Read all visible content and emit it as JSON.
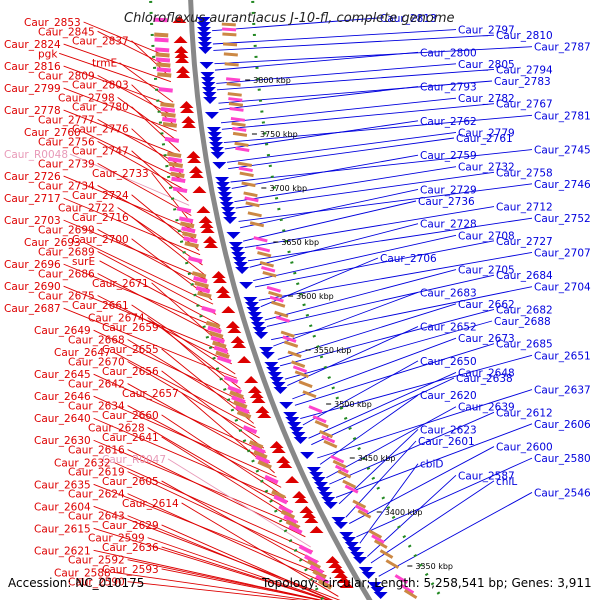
{
  "title": "Chloroflexus aurantiacus J-10-fl, complete genome",
  "accession": "Accession: NC_010175",
  "summary": "Topology: circular; Length: 5,258,541 bp; Genes: 3,911",
  "colors": {
    "forward": "#0000dd",
    "reverse": "#dd0000",
    "rna": "#e89ab8",
    "backbone": "#888888",
    "ticks": "#228822"
  },
  "kbp_labels": [
    "3800 kbp",
    "3750 kbp",
    "3700 kbp",
    "3650 kbp",
    "3600 kbp",
    "3550 kbp",
    "3500 kbp",
    "3450 kbp",
    "3400 kbp",
    "3350 kbp"
  ],
  "left_labels": [
    "Caur_2853",
    "Caur_2845",
    "Caur_2837",
    "Caur_2824",
    "pgk",
    "trmE",
    "Caur_2816",
    "Caur_2809",
    "Caur_2803",
    "Caur_2799",
    "Caur_2798",
    "Caur_2780",
    "Caur_2778",
    "Caur_2777",
    "Caur_2776",
    "Caur_2760",
    "Caur_2756",
    "Caur_2747",
    "Caur_R0048",
    "Caur_2739",
    "Caur_2733",
    "Caur_2726",
    "Caur_2734",
    "Caur_2724",
    "Caur_2717",
    "Caur_2722",
    "Caur_2716",
    "Caur_2703",
    "Caur_2699",
    "Caur_2700",
    "Caur_2693",
    "Caur_2689",
    "surE",
    "Caur_2696",
    "Caur_2686",
    "Caur_2671",
    "Caur_2690",
    "Caur_2675",
    "Caur_2661",
    "Caur_2687",
    "Caur_2674",
    "Caur_2659",
    "Caur_2649",
    "Caur_2668",
    "Caur_2655",
    "Caur_2647",
    "Caur_2670",
    "Caur_2656",
    "Caur_2645",
    "Caur_2642",
    "Caur_2657",
    "Caur_2646",
    "Caur_2634",
    "Caur_2660",
    "Caur_2640",
    "Caur_2628",
    "Caur_2641",
    "Caur_2630",
    "Caur_2616",
    "Caur_R0047",
    "Caur_2632",
    "Caur_2619",
    "Caur_2605",
    "Caur_2635",
    "Caur_2624",
    "Caur_2614",
    "Caur_2604",
    "Caur_2643",
    "Caur_2629",
    "Caur_2615",
    "Caur_2599",
    "Caur_2636",
    "Caur_2621",
    "Caur_2592",
    "Caur_2593",
    "Caur_2588",
    "Caur_2590"
  ],
  "right_labels": [
    "Caur_2813",
    "Caur_2797",
    "Caur_2810",
    "Caur_2787",
    "Caur_2800",
    "Caur_2805",
    "Caur_2794",
    "Caur_2783",
    "Caur_2793",
    "Caur_2782",
    "Caur_2767",
    "Caur_2781",
    "Caur_2762",
    "Caur_2779",
    "Caur_2761",
    "Caur_2745",
    "Caur_2759",
    "Caur_2732",
    "Caur_2758",
    "Caur_2746",
    "Caur_2729",
    "Caur_2736",
    "Caur_2712",
    "Caur_2752",
    "Caur_2728",
    "Caur_2708",
    "Caur_2727",
    "Caur_2707",
    "Caur_2706",
    "Caur_2705",
    "Caur_2684",
    "Caur_2704",
    "Caur_2683",
    "Caur_2662",
    "Caur_2682",
    "Caur_2688",
    "Caur_2652",
    "Caur_2673",
    "Caur_2685",
    "Caur_2651",
    "Caur_2650",
    "Caur_2648",
    "Caur_2638",
    "Caur_2637",
    "Caur_2620",
    "Caur_2639",
    "Caur_2612",
    "Caur_2606",
    "Caur_2623",
    "Caur_2601",
    "Caur_2600",
    "Caur_2580",
    "cbiD",
    "Caur_2587",
    "chlL",
    "Caur_2546"
  ]
}
